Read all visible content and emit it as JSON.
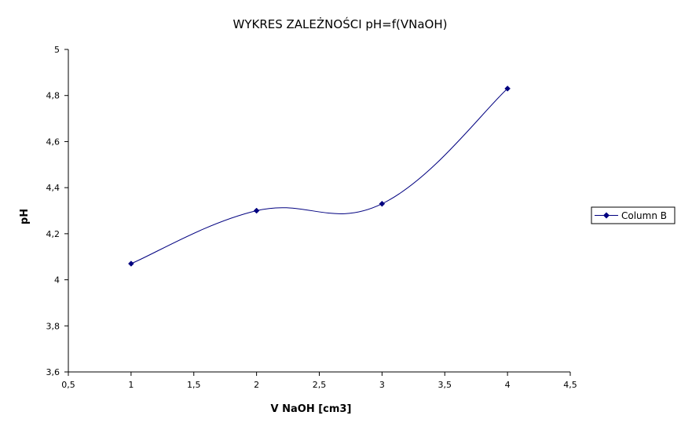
{
  "chart_data": {
    "type": "line",
    "title": "WYKRES ZALEŻNOŚCI pH=f(VNaOH)",
    "xlabel": "V NaOH [cm3]",
    "ylabel": "pH",
    "xlim": [
      0.5,
      4.5
    ],
    "ylim": [
      3.6,
      5.0
    ],
    "x_ticks": [
      0.5,
      1,
      1.5,
      2,
      2.5,
      3,
      3.5,
      4,
      4.5
    ],
    "x_tick_labels": [
      "0,5",
      "1",
      "1,5",
      "2",
      "2,5",
      "3",
      "3,5",
      "4",
      "4,5"
    ],
    "y_ticks": [
      3.6,
      3.8,
      4.0,
      4.2,
      4.4,
      4.6,
      4.8,
      5.0
    ],
    "y_tick_labels": [
      "3,6",
      "3,8",
      "4",
      "4,2",
      "4,4",
      "4,6",
      "4,8",
      "5"
    ],
    "grid": false,
    "smoothed": true,
    "legend_position": "right",
    "series": [
      {
        "name": "Column B",
        "color": "#000080",
        "marker": "diamond",
        "x": [
          1,
          2,
          3,
          4
        ],
        "y": [
          4.07,
          4.3,
          4.33,
          4.83
        ]
      }
    ]
  }
}
